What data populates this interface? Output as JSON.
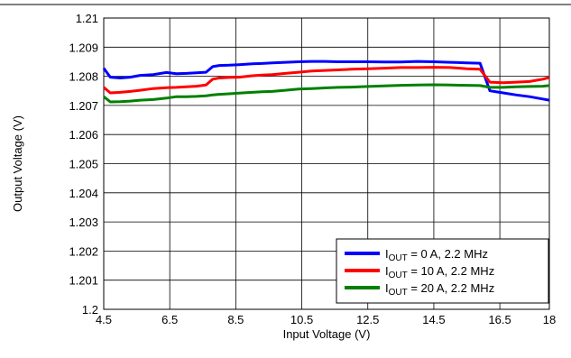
{
  "chart_data": {
    "type": "line",
    "title": "",
    "xlabel": "Input Voltage (V)",
    "ylabel": "Output Voltage (V)",
    "xlim": [
      4.5,
      18
    ],
    "ylim": [
      1.2,
      1.21
    ],
    "grid": true,
    "legend_position": "bottom-right",
    "x_ticks": [
      "4.5",
      "6.5",
      "8.5",
      "10.5",
      "12.5",
      "14.5",
      "16.5",
      "18"
    ],
    "x_tick_values": [
      4.5,
      6.5,
      8.5,
      10.5,
      12.5,
      14.5,
      16.5,
      18
    ],
    "y_ticks": [
      "1.2",
      "1.201",
      "1.202",
      "1.203",
      "1.204",
      "1.205",
      "1.206",
      "1.207",
      "1.208",
      "1.209",
      "1.21"
    ],
    "y_tick_values": [
      1.2,
      1.201,
      1.202,
      1.203,
      1.204,
      1.205,
      1.206,
      1.207,
      1.208,
      1.209,
      1.21
    ],
    "series": [
      {
        "name_main": "I",
        "name_sub": "OUT",
        "name_rest": " = 0 A, 2.2 MHz",
        "color": "#0000ff",
        "x": [
          4.5,
          4.7,
          5.0,
          5.3,
          5.6,
          6.0,
          6.4,
          6.7,
          7.0,
          7.3,
          7.6,
          7.8,
          8.0,
          8.3,
          8.6,
          9.0,
          9.3,
          9.6,
          10.0,
          10.4,
          10.8,
          11.2,
          11.6,
          12.0,
          12.5,
          13.0,
          13.5,
          14.0,
          14.5,
          15.0,
          15.5,
          15.9,
          16.2,
          16.6,
          17.0,
          17.4,
          17.8,
          18.0
        ],
        "y": [
          1.20828,
          1.20797,
          1.20794,
          1.20797,
          1.20803,
          1.20806,
          1.20813,
          1.20809,
          1.2081,
          1.20812,
          1.20814,
          1.20833,
          1.20837,
          1.20838,
          1.2084,
          1.20843,
          1.20844,
          1.20846,
          1.20848,
          1.2085,
          1.20851,
          1.20851,
          1.2085,
          1.2085,
          1.2085,
          1.20849,
          1.20849,
          1.20851,
          1.2085,
          1.20848,
          1.20846,
          1.20845,
          1.2075,
          1.20743,
          1.20736,
          1.2073,
          1.20722,
          1.20718
        ]
      },
      {
        "name_main": "I",
        "name_sub": "OUT",
        "name_rest": " = 10 A, 2.2 MHz",
        "color": "#ff0000",
        "x": [
          4.5,
          4.7,
          5.0,
          5.3,
          5.6,
          6.0,
          6.4,
          6.7,
          7.0,
          7.3,
          7.6,
          7.8,
          8.0,
          8.3,
          8.6,
          9.0,
          9.3,
          9.6,
          10.0,
          10.4,
          10.8,
          11.2,
          11.6,
          12.0,
          12.5,
          13.0,
          13.5,
          14.0,
          14.5,
          15.0,
          15.5,
          15.9,
          16.2,
          16.6,
          17.0,
          17.4,
          17.8,
          18.0
        ],
        "y": [
          1.20762,
          1.20743,
          1.20745,
          1.20748,
          1.20752,
          1.20758,
          1.20761,
          1.20762,
          1.20764,
          1.20766,
          1.2077,
          1.2079,
          1.20794,
          1.20796,
          1.20797,
          1.20802,
          1.20804,
          1.20806,
          1.2081,
          1.20814,
          1.20818,
          1.2082,
          1.20822,
          1.20824,
          1.20826,
          1.20828,
          1.2083,
          1.2083,
          1.20831,
          1.2083,
          1.20826,
          1.20824,
          1.2078,
          1.20778,
          1.2078,
          1.20782,
          1.2079,
          1.20796
        ]
      },
      {
        "name_main": "I",
        "name_sub": "OUT",
        "name_rest": " = 20 A, 2.2 MHz",
        "color": "#008000",
        "x": [
          4.5,
          4.7,
          5.0,
          5.3,
          5.6,
          6.0,
          6.4,
          6.7,
          7.0,
          7.3,
          7.6,
          7.8,
          8.0,
          8.3,
          8.6,
          9.0,
          9.3,
          9.6,
          10.0,
          10.4,
          10.8,
          11.2,
          11.6,
          12.0,
          12.5,
          13.0,
          13.5,
          14.0,
          14.5,
          15.0,
          15.5,
          15.9,
          16.2,
          16.6,
          17.0,
          17.4,
          17.8,
          18.0
        ],
        "y": [
          1.2073,
          1.20712,
          1.20713,
          1.20715,
          1.20718,
          1.2072,
          1.20725,
          1.2073,
          1.2073,
          1.20731,
          1.20733,
          1.20736,
          1.20738,
          1.2074,
          1.20742,
          1.20745,
          1.20747,
          1.20748,
          1.20752,
          1.20756,
          1.20758,
          1.2076,
          1.20762,
          1.20763,
          1.20765,
          1.20767,
          1.20769,
          1.2077,
          1.20771,
          1.2077,
          1.20769,
          1.20768,
          1.20762,
          1.20762,
          1.20764,
          1.20765,
          1.20766,
          1.20768
        ]
      }
    ]
  }
}
